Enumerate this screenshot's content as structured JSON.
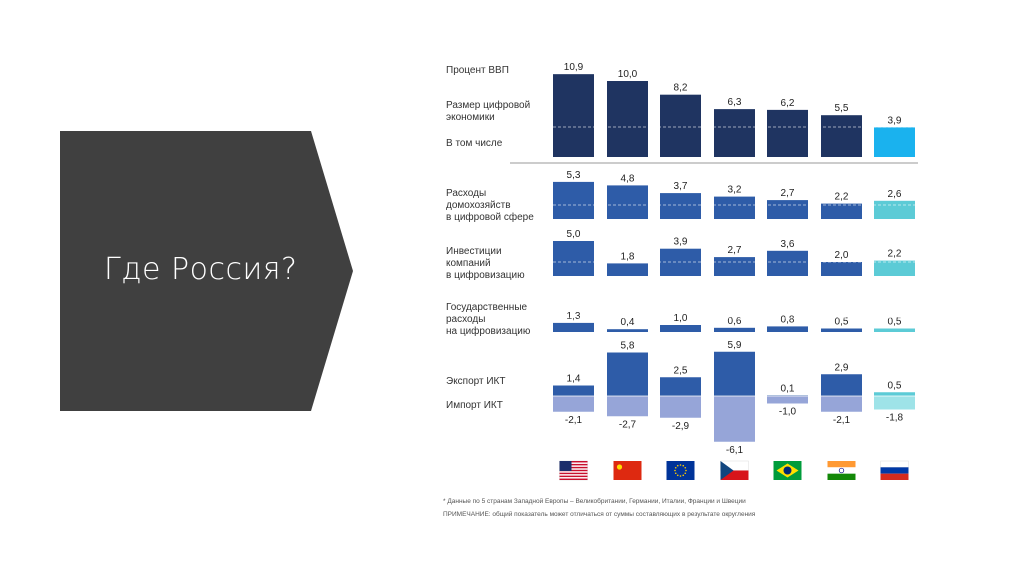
{
  "slide": {
    "title": "Где Россия?"
  },
  "colors": {
    "banner": "#404040",
    "dark_navy": "#1f3461",
    "mid_blue": "#2e5ca8",
    "highlight_blue": "#1ab2ee",
    "teal": "#5ccbd6",
    "light_purple": "#96a5d8",
    "light_teal": "#9ee3e8"
  },
  "chart_data": {
    "type": "bar",
    "categories": [
      "США",
      "Китай",
      "ЕС*",
      "Чехия",
      "Бразилия",
      "Индия",
      "Россия"
    ],
    "flag_icons": [
      "us-flag-icon",
      "china-flag-icon",
      "eu-flag-icon",
      "czech-flag-icon",
      "brazil-flag-icon",
      "india-flag-icon",
      "russia-flag-icon"
    ],
    "ylabel": "Процент ВВП",
    "rows": [
      {
        "name": "Размер цифровой экономики",
        "subtitle": "В том числе",
        "values": [
          10.9,
          10.0,
          8.2,
          6.3,
          6.2,
          5.5,
          3.9
        ],
        "labels": [
          "10,9",
          "10,0",
          "8,2",
          "6,3",
          "6,2",
          "5,5",
          "3,9"
        ]
      },
      {
        "name": "Расходы домохозяйств в цифровой сфере",
        "values": [
          5.3,
          4.8,
          3.7,
          3.2,
          2.7,
          2.2,
          2.6
        ],
        "labels": [
          "5,3",
          "4,8",
          "3,7",
          "3,2",
          "2,7",
          "2,2",
          "2,6"
        ]
      },
      {
        "name": "Инвестиции компаний в цифровизацию",
        "values": [
          5.0,
          1.8,
          3.9,
          2.7,
          3.6,
          2.0,
          2.2
        ],
        "labels": [
          "5,0",
          "1,8",
          "3,9",
          "2,7",
          "3,6",
          "2,0",
          "2,2"
        ]
      },
      {
        "name": "Государственные расходы на цифровизацию",
        "values": [
          1.3,
          0.4,
          1.0,
          0.6,
          0.8,
          0.5,
          0.5
        ],
        "labels": [
          "1,3",
          "0,4",
          "1,0",
          "0,6",
          "0,8",
          "0,5",
          "0,5"
        ]
      },
      {
        "name": "Экспорт ИКТ",
        "values": [
          1.4,
          5.8,
          2.5,
          5.9,
          0.1,
          2.9,
          0.5
        ],
        "labels": [
          "1,4",
          "5,8",
          "2,5",
          "5,9",
          "0,1",
          "2,9",
          "0,5"
        ]
      },
      {
        "name": "Импорт ИКТ",
        "values": [
          -2.1,
          -2.7,
          -2.9,
          -6.1,
          -1.0,
          -2.1,
          -1.8
        ],
        "labels": [
          "-2,1",
          "-2,7",
          "-2,9",
          "-6,1",
          "-1,0",
          "-2,1",
          "-1,8"
        ]
      }
    ],
    "footnote": "* Данные по 5 странам Западной Европы – Великобритании, Германии, Италии, Франции и Швеции",
    "note": "ПРИМЕЧАНИЕ: общий показатель может отличаться от суммы составляющих в результате округления"
  }
}
